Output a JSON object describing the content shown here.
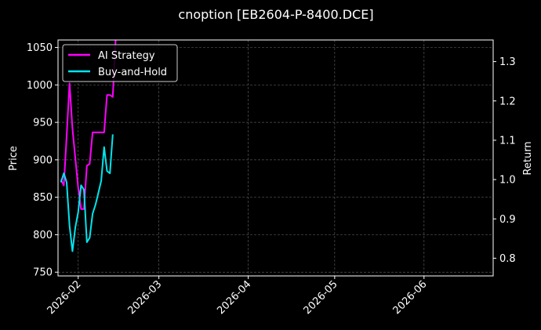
{
  "chart_data": {
    "type": "line",
    "title": "cnoption [EB2604-P-8400.DCE]",
    "xlabel": "",
    "ylabel_left": "Price",
    "ylabel_right": "Return",
    "x_ticks": [
      "2026-02",
      "2026-03",
      "2026-04",
      "2026-05",
      "2026-06"
    ],
    "x_tick_dates": [
      "2026-02-01",
      "2026-03-01",
      "2026-04-01",
      "2026-05-01",
      "2026-06-01"
    ],
    "xlim": [
      "2026-01-25",
      "2026-06-25"
    ],
    "ylim_left": [
      745,
      1060
    ],
    "ylim_right": [
      0.755,
      1.355
    ],
    "y_ticks_left": [
      750,
      800,
      850,
      900,
      950,
      1000,
      1050
    ],
    "y_ticks_right": [
      0.8,
      0.9,
      1.0,
      1.1,
      1.2,
      1.3
    ],
    "grid": true,
    "legend_position": "top-left",
    "series": [
      {
        "name": "AI Strategy",
        "axis": "right",
        "color": "#ff00ff",
        "points": [
          [
            "2026-01-26",
            1.0
          ],
          [
            "2026-01-27",
            0.985
          ],
          [
            "2026-01-28",
            1.11
          ],
          [
            "2026-01-29",
            1.245
          ],
          [
            "2026-01-30",
            1.13
          ],
          [
            "2026-02-01",
            0.98
          ],
          [
            "2026-02-02",
            0.925
          ],
          [
            "2026-02-03",
            0.925
          ],
          [
            "2026-02-04",
            1.035
          ],
          [
            "2026-02-05",
            1.04
          ],
          [
            "2026-02-06",
            1.12
          ],
          [
            "2026-02-07",
            1.12
          ],
          [
            "2026-02-08",
            1.12
          ],
          [
            "2026-02-09",
            1.12
          ],
          [
            "2026-02-10",
            1.12
          ],
          [
            "2026-02-11",
            1.215
          ],
          [
            "2026-02-12",
            1.215
          ],
          [
            "2026-02-13",
            1.21
          ],
          [
            "2026-02-14",
            1.355
          ]
        ]
      },
      {
        "name": "Buy-and-Hold",
        "axis": "left",
        "color": "#00e5ee",
        "points": [
          [
            "2026-01-26",
            870
          ],
          [
            "2026-01-27",
            882
          ],
          [
            "2026-01-28",
            870
          ],
          [
            "2026-01-29",
            812
          ],
          [
            "2026-01-30",
            778
          ],
          [
            "2026-01-31",
            810
          ],
          [
            "2026-02-01",
            830
          ],
          [
            "2026-02-02",
            866
          ],
          [
            "2026-02-03",
            860
          ],
          [
            "2026-02-04",
            790
          ],
          [
            "2026-02-05",
            796
          ],
          [
            "2026-02-06",
            828
          ],
          [
            "2026-02-07",
            840
          ],
          [
            "2026-02-08",
            856
          ],
          [
            "2026-02-09",
            872
          ],
          [
            "2026-02-10",
            917
          ],
          [
            "2026-02-11",
            885
          ],
          [
            "2026-02-12",
            882
          ],
          [
            "2026-02-13",
            934
          ]
        ]
      }
    ]
  }
}
